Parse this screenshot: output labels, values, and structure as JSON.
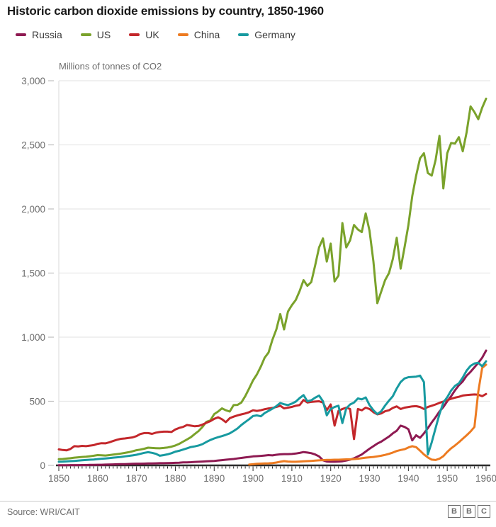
{
  "title": "Historic carbon dioxide emissions by country, 1850-1960",
  "source": "Source: WRI/CAIT",
  "logo_letters": [
    "B",
    "B",
    "C"
  ],
  "colors": {
    "russia": "#8e1a52",
    "us": "#7aa22b",
    "uk": "#c3272b",
    "china": "#ed7b21",
    "germany": "#179aa0",
    "grid": "#e8e8e8",
    "plot_left_line": "#e0e0e0",
    "axis": "#2b2b2b",
    "tick_label": "#6d6d6d",
    "y_tick": "#bfbfbf"
  },
  "chart_data": {
    "type": "line",
    "title": "Historic carbon dioxide emissions by country, 1850-1960",
    "xlabel": "",
    "ylabel": "Millions of tonnes of CO2",
    "xlim": [
      1850,
      1960
    ],
    "ylim": [
      0,
      3000
    ],
    "grid": "horizontal-only",
    "legend_position": "top-left",
    "x_start": 1850,
    "x_step": 1,
    "xticks": [
      1850,
      1860,
      1870,
      1880,
      1890,
      1900,
      1910,
      1920,
      1930,
      1940,
      1950,
      1960
    ],
    "yticks": [
      0,
      500,
      1000,
      1500,
      2000,
      2500,
      3000
    ],
    "ytick_labels": [
      "0",
      "500",
      "1,000",
      "1,500",
      "2,000",
      "2,500",
      "3,000"
    ],
    "series": [
      {
        "name": "Russia",
        "color_key": "russia",
        "values": [
          1,
          1,
          1,
          2,
          2,
          2,
          3,
          3,
          4,
          4,
          5,
          5,
          6,
          7,
          8,
          9,
          10,
          10,
          11,
          12,
          13,
          13,
          14,
          15,
          15,
          16,
          17,
          17,
          18,
          19,
          20,
          21,
          23,
          24,
          25,
          27,
          28,
          30,
          32,
          33,
          35,
          38,
          41,
          44,
          47,
          50,
          54,
          58,
          62,
          66,
          70,
          72,
          74,
          77,
          80,
          78,
          83,
          86,
          88,
          88,
          89,
          92,
          97,
          104,
          100,
          95,
          85,
          70,
          40,
          30,
          28,
          28,
          30,
          32,
          38,
          45,
          55,
          70,
          85,
          108,
          130,
          150,
          170,
          185,
          205,
          225,
          250,
          270,
          310,
          300,
          282,
          195,
          235,
          215,
          250,
          290,
          335,
          375,
          420,
          455,
          500,
          540,
          585,
          625,
          655,
          700,
          730,
          765,
          800,
          840,
          895
        ]
      },
      {
        "name": "US",
        "color_key": "us",
        "values": [
          48,
          50,
          53,
          56,
          60,
          63,
          66,
          68,
          71,
          75,
          80,
          79,
          77,
          80,
          84,
          88,
          92,
          97,
          103,
          110,
          118,
          123,
          130,
          138,
          136,
          134,
          133,
          136,
          140,
          146,
          155,
          168,
          185,
          202,
          220,
          245,
          268,
          300,
          340,
          350,
          400,
          420,
          445,
          430,
          420,
          470,
          472,
          490,
          540,
          600,
          663,
          710,
          770,
          840,
          880,
          980,
          1060,
          1180,
          1060,
          1200,
          1250,
          1290,
          1360,
          1445,
          1400,
          1430,
          1560,
          1700,
          1770,
          1590,
          1730,
          1435,
          1480,
          1890,
          1700,
          1755,
          1875,
          1840,
          1820,
          1965,
          1830,
          1590,
          1265,
          1355,
          1445,
          1500,
          1610,
          1775,
          1535,
          1700,
          1875,
          2100,
          2260,
          2395,
          2435,
          2280,
          2260,
          2380,
          2570,
          2160,
          2435,
          2515,
          2510,
          2560,
          2450,
          2600,
          2800,
          2755,
          2700,
          2790,
          2860
        ]
      },
      {
        "name": "UK",
        "color_key": "uk",
        "values": [
          125,
          120,
          117,
          128,
          150,
          148,
          152,
          150,
          154,
          158,
          168,
          173,
          172,
          180,
          190,
          200,
          207,
          210,
          214,
          218,
          228,
          245,
          252,
          252,
          246,
          255,
          260,
          263,
          263,
          260,
          280,
          292,
          300,
          315,
          310,
          305,
          308,
          318,
          332,
          345,
          363,
          375,
          360,
          337,
          368,
          380,
          390,
          398,
          405,
          415,
          430,
          425,
          430,
          438,
          444,
          448,
          455,
          465,
          445,
          450,
          456,
          465,
          470,
          510,
          490,
          495,
          498,
          500,
          490,
          430,
          475,
          310,
          425,
          440,
          450,
          440,
          205,
          440,
          430,
          450,
          440,
          415,
          398,
          405,
          422,
          430,
          448,
          460,
          440,
          450,
          455,
          460,
          462,
          455,
          440,
          455,
          465,
          475,
          488,
          498,
          508,
          520,
          528,
          535,
          545,
          548,
          551,
          553,
          551,
          540,
          557
        ]
      },
      {
        "name": "China",
        "color_key": "china",
        "values": [
          null,
          null,
          null,
          null,
          null,
          null,
          null,
          null,
          null,
          null,
          null,
          null,
          null,
          null,
          null,
          null,
          null,
          null,
          null,
          null,
          null,
          null,
          null,
          null,
          null,
          null,
          null,
          null,
          null,
          null,
          null,
          null,
          null,
          null,
          null,
          null,
          null,
          null,
          null,
          null,
          null,
          null,
          null,
          null,
          null,
          null,
          null,
          null,
          null,
          6,
          9,
          12,
          14,
          15,
          16,
          18,
          22,
          28,
          33,
          30,
          28,
          28,
          30,
          32,
          33,
          35,
          37,
          39,
          41,
          43,
          43,
          44,
          44,
          46,
          47,
          47,
          49,
          52,
          56,
          60,
          63,
          66,
          70,
          75,
          82,
          90,
          100,
          112,
          120,
          126,
          140,
          150,
          142,
          115,
          85,
          62,
          45,
          42,
          52,
          72,
          105,
          133,
          155,
          180,
          208,
          235,
          264,
          300,
          575,
          760,
          785
        ]
      },
      {
        "name": "Germany",
        "color_key": "germany",
        "values": [
          28,
          29,
          31,
          33,
          35,
          37,
          40,
          42,
          44,
          46,
          49,
          52,
          54,
          57,
          60,
          63,
          66,
          70,
          74,
          78,
          83,
          90,
          98,
          103,
          98,
          90,
          75,
          80,
          86,
          95,
          107,
          114,
          123,
          133,
          143,
          148,
          155,
          166,
          183,
          198,
          210,
          220,
          228,
          238,
          250,
          268,
          288,
          315,
          338,
          360,
          385,
          390,
          383,
          408,
          425,
          442,
          462,
          487,
          477,
          470,
          482,
          497,
          525,
          548,
          500,
          508,
          528,
          545,
          500,
          390,
          440,
          455,
          465,
          330,
          445,
          475,
          490,
          522,
          515,
          530,
          470,
          430,
          400,
          422,
          467,
          505,
          540,
          600,
          650,
          678,
          688,
          690,
          692,
          700,
          650,
          85,
          180,
          290,
          400,
          490,
          532,
          584,
          620,
          640,
          685,
          740,
          776,
          795,
          800,
          773,
          812
        ]
      }
    ]
  }
}
